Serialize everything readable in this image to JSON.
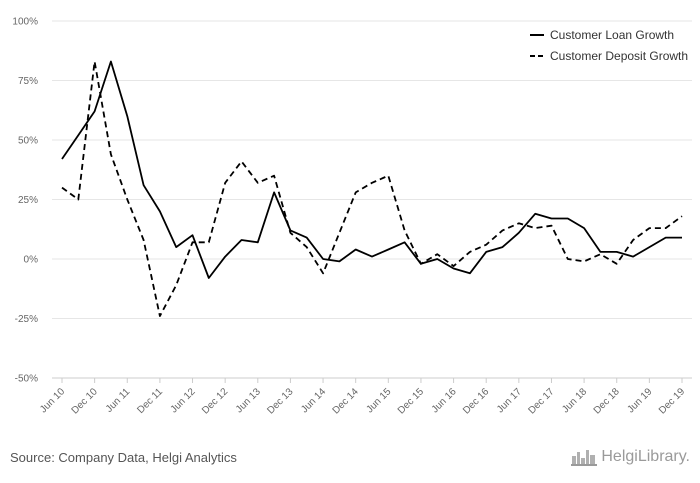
{
  "chart_data": {
    "type": "line",
    "title": "",
    "xlabel": "",
    "ylabel": "",
    "ylim": [
      -50,
      100
    ],
    "y_ticks": [
      "100%",
      "75%",
      "50%",
      "25%",
      "0%",
      "-25%",
      "-50%"
    ],
    "y_tick_values": [
      100,
      75,
      50,
      25,
      0,
      -25,
      -50
    ],
    "x_tick_labels": [
      "Jun 10",
      "Dec 10",
      "Jun 11",
      "Dec 11",
      "Jun 12",
      "Dec 12",
      "Jun 13",
      "Dec 13",
      "Jun 14",
      "Dec 14",
      "Jun 15",
      "Dec 15",
      "Jun 16",
      "Dec 16",
      "Jun 17",
      "Dec 17",
      "Jun 18",
      "Dec 18",
      "Jun 19",
      "Dec 19"
    ],
    "x": [
      "Jun 10",
      "Sep 10",
      "Dec 10",
      "Mar 11",
      "Jun 11",
      "Sep 11",
      "Dec 11",
      "Mar 12",
      "Jun 12",
      "Sep 12",
      "Dec 12",
      "Mar 13",
      "Jun 13",
      "Sep 13",
      "Dec 13",
      "Mar 14",
      "Jun 14",
      "Sep 14",
      "Dec 14",
      "Mar 15",
      "Jun 15",
      "Sep 15",
      "Dec 15",
      "Mar 16",
      "Jun 16",
      "Sep 16",
      "Dec 16",
      "Mar 17",
      "Jun 17",
      "Sep 17",
      "Dec 17",
      "Mar 18",
      "Jun 18",
      "Sep 18",
      "Dec 18",
      "Mar 19",
      "Jun 19",
      "Sep 19",
      "Dec 19"
    ],
    "grid": true,
    "legend_position": "top-right",
    "series": [
      {
        "name": "Customer Loan Growth",
        "style": "solid",
        "color": "#000000",
        "values": [
          42,
          52,
          62,
          83,
          60,
          31,
          20,
          5,
          10,
          -8,
          1,
          8,
          7,
          28,
          12,
          9,
          0,
          -1,
          4,
          1,
          4,
          7,
          -2,
          0,
          -4,
          -6,
          3,
          5,
          11,
          19,
          17,
          17,
          13,
          3,
          3,
          1,
          5,
          9,
          9
        ]
      },
      {
        "name": "Customer Deposit Growth",
        "style": "dashed",
        "color": "#000000",
        "values": [
          30,
          25,
          83,
          44,
          25,
          8,
          -24,
          -11,
          7,
          7,
          32,
          41,
          32,
          35,
          11,
          5,
          -6,
          11,
          28,
          32,
          35,
          12,
          -2,
          2,
          -3,
          3,
          6,
          12,
          15,
          13,
          14,
          0,
          -1,
          2,
          -2,
          8,
          13,
          13,
          18
        ]
      }
    ]
  },
  "footer": {
    "source": "Source: Company Data, Helgi Analytics",
    "logo_text": "HelgiLibrary."
  }
}
